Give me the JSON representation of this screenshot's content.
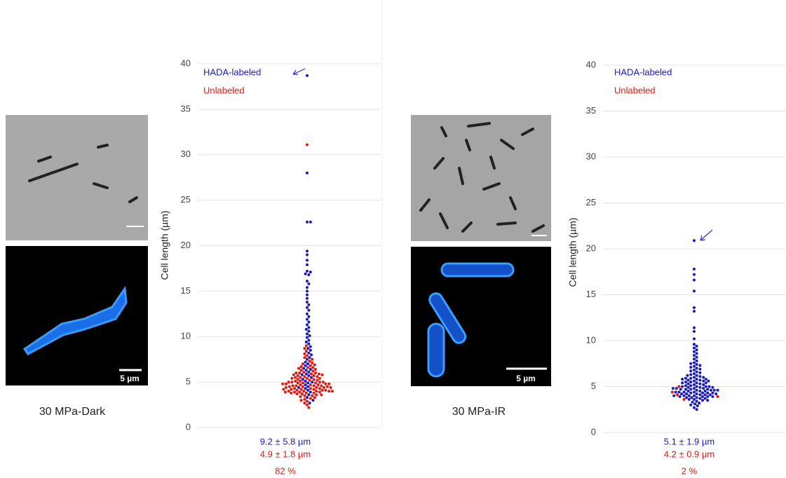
{
  "chart_data": [
    {
      "type": "swarm",
      "y_label": "Cell length (µm)",
      "ylim": [
        0,
        40
      ],
      "yticks": [
        0,
        5,
        10,
        15,
        20,
        25,
        30,
        35,
        40
      ],
      "grid": true,
      "series": [
        {
          "name": "HADA-labeled",
          "color": "#1a1ab8",
          "values": [
            38.7,
            28.0,
            22.6,
            22.6,
            19.4,
            19.0,
            18.4,
            17.9,
            17.2,
            17.1,
            16.9,
            16.8,
            16.1,
            15.8,
            15.4,
            15.0,
            14.6,
            14.2,
            13.8,
            13.5,
            13.2,
            12.9,
            12.5,
            12.2,
            11.9,
            11.6,
            11.3,
            11.0,
            10.8,
            10.6,
            10.3,
            10.1,
            9.9,
            9.6,
            9.4,
            9.2,
            8.9,
            8.7,
            8.5,
            8.2,
            8.0,
            7.7,
            7.5,
            7.2,
            7.0,
            6.8,
            6.5,
            6.3,
            6.1,
            5.9,
            5.7,
            5.5,
            5.3,
            5.1,
            4.9,
            4.7,
            4.5,
            4.3,
            4.1,
            3.9,
            3.6,
            3.3,
            3.0,
            2.7,
            6.4,
            5.8,
            5.0,
            4.4
          ]
        },
        {
          "name": "Unlabeled",
          "color": "#e3170f",
          "values": [
            31.1,
            9.0,
            8.7,
            8.4,
            8.1,
            7.9,
            7.7,
            7.5,
            7.3,
            7.1,
            7.0,
            6.9,
            6.8,
            6.7,
            6.6,
            6.5,
            6.4,
            6.3,
            6.2,
            6.1,
            6.0,
            6.0,
            5.9,
            5.9,
            5.8,
            5.8,
            5.7,
            5.7,
            5.6,
            5.6,
            5.5,
            5.5,
            5.4,
            5.4,
            5.3,
            5.3,
            5.2,
            5.2,
            5.1,
            5.1,
            5.0,
            5.0,
            5.0,
            4.9,
            4.9,
            4.9,
            4.8,
            4.8,
            4.8,
            4.7,
            4.7,
            4.7,
            4.6,
            4.6,
            4.6,
            4.5,
            4.5,
            4.5,
            4.4,
            4.4,
            4.4,
            4.3,
            4.3,
            4.3,
            4.2,
            4.2,
            4.2,
            4.1,
            4.1,
            4.1,
            4.0,
            4.0,
            4.0,
            4.0,
            3.9,
            3.9,
            3.9,
            3.8,
            3.8,
            3.8,
            3.7,
            3.7,
            3.6,
            3.6,
            3.5,
            3.5,
            3.4,
            3.3,
            3.2,
            3.1,
            3.0,
            2.9,
            2.7,
            2.5,
            2.2,
            5.0,
            4.6,
            4.2,
            3.9,
            4.8,
            5.4,
            6.0,
            6.6,
            4.4,
            4.0
          ]
        }
      ],
      "stats": [
        {
          "text": "9.2 ± 5.8 µm",
          "color": "#1a1ab8"
        },
        {
          "text": "4.9 ± 1.8 µm",
          "color": "#e3170f"
        },
        {
          "text": "82 %",
          "color": "#e3170f"
        }
      ]
    },
    {
      "type": "swarm",
      "y_label": "Cell length (µm)",
      "ylim": [
        0,
        40
      ],
      "yticks": [
        0,
        5,
        10,
        15,
        20,
        25,
        30,
        35,
        40
      ],
      "grid": true,
      "series": [
        {
          "name": "HADA-labeled",
          "color": "#1a1ab8",
          "values": [
            20.9,
            17.8,
            17.2,
            16.6,
            15.4,
            13.6,
            13.2,
            11.4,
            11.0,
            10.2,
            9.6,
            9.4,
            9.2,
            9.0,
            8.8,
            8.6,
            8.4,
            8.2,
            8.0,
            7.8,
            7.6,
            7.5,
            7.4,
            7.3,
            7.2,
            7.1,
            7.0,
            6.9,
            6.8,
            6.7,
            6.6,
            6.5,
            6.4,
            6.3,
            6.2,
            6.1,
            6.0,
            6.0,
            5.9,
            5.9,
            5.8,
            5.8,
            5.7,
            5.7,
            5.6,
            5.6,
            5.5,
            5.5,
            5.4,
            5.4,
            5.3,
            5.3,
            5.2,
            5.2,
            5.1,
            5.1,
            5.0,
            5.0,
            5.0,
            4.9,
            4.9,
            4.9,
            4.8,
            4.8,
            4.8,
            4.7,
            4.7,
            4.7,
            4.6,
            4.6,
            4.6,
            4.5,
            4.5,
            4.5,
            4.4,
            4.4,
            4.4,
            4.3,
            4.3,
            4.3,
            4.2,
            4.2,
            4.2,
            4.1,
            4.1,
            4.1,
            4.0,
            4.0,
            4.0,
            3.9,
            3.9,
            3.9,
            3.8,
            3.8,
            3.8,
            3.7,
            3.7,
            3.6,
            3.6,
            3.5,
            3.5,
            3.4,
            3.3,
            3.2,
            3.1,
            3.0,
            2.9,
            2.7,
            2.5,
            6.2,
            5.6,
            5.0,
            4.6,
            4.2,
            3.9,
            4.8,
            4.4,
            4.0,
            5.4,
            5.8,
            4.7,
            4.3
          ]
        },
        {
          "name": "Unlabeled",
          "color": "#e3170f",
          "values": [
            5.0,
            4.4,
            3.9,
            3.6,
            4.1
          ]
        }
      ],
      "stats": [
        {
          "text": "5.1 ± 1.9 µm",
          "color": "#1a1ab8"
        },
        {
          "text": "4.2 ± 0.9 µm",
          "color": "#e3170f"
        },
        {
          "text": "2 %",
          "color": "#e3170f"
        }
      ]
    }
  ],
  "panels": [
    {
      "label": "30 MPa-Dark",
      "scale_bar": "5 µm"
    },
    {
      "label": "30 MPa-IR",
      "scale_bar": "5 µm"
    }
  ]
}
